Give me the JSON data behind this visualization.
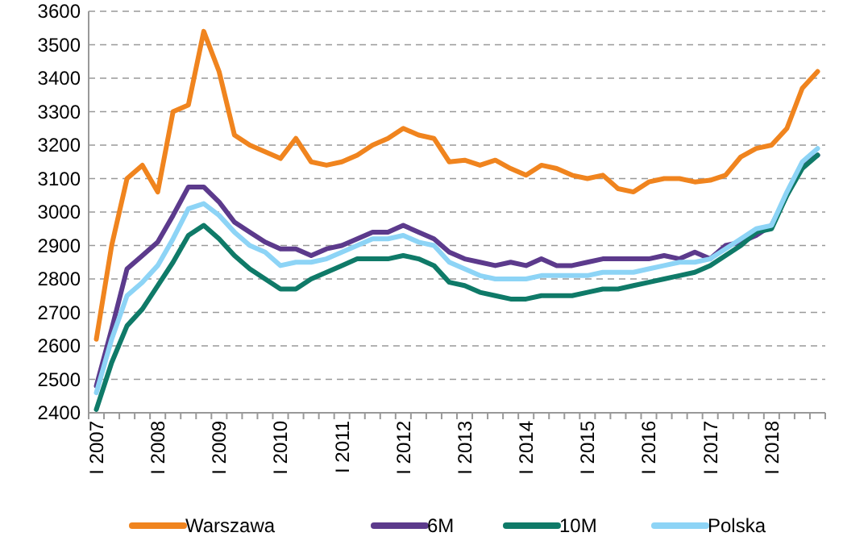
{
  "chart_data": {
    "type": "line",
    "categories": [
      "I 2007",
      null,
      null,
      null,
      "I 2008",
      null,
      null,
      null,
      "I 2009",
      null,
      null,
      null,
      "I 2010",
      null,
      null,
      null,
      "I 2011",
      null,
      null,
      null,
      "I 2012",
      null,
      null,
      null,
      "I 2013",
      null,
      null,
      null,
      "I 2014",
      null,
      null,
      null,
      "I 2015",
      null,
      null,
      null,
      "I 2016",
      null,
      null,
      null,
      "I 2017",
      null,
      null,
      null,
      "I 2018",
      null,
      null,
      null
    ],
    "ylim": [
      2400,
      3600
    ],
    "yticks": [
      2400,
      2500,
      2600,
      2700,
      2800,
      2900,
      3000,
      3100,
      3200,
      3300,
      3400,
      3500,
      3600
    ],
    "grid": "y",
    "legend": "bottom",
    "line_style": "solid",
    "marker": "none",
    "series": [
      {
        "name": "Warszawa",
        "color": "#f0841e",
        "values": [
          2620,
          2900,
          3100,
          3140,
          3060,
          3300,
          3320,
          3540,
          3420,
          3230,
          3200,
          3180,
          3160,
          3220,
          3150,
          3140,
          3150,
          3170,
          3200,
          3220,
          3250,
          3230,
          3220,
          3150,
          3155,
          3140,
          3155,
          3130,
          3110,
          3140,
          3130,
          3110,
          3100,
          3110,
          3070,
          3060,
          3090,
          3100,
          3100,
          3090,
          3095,
          3110,
          3165,
          3190,
          3200,
          3250,
          3370,
          3420
        ]
      },
      {
        "name": "6M",
        "color": "#5c3a8c",
        "values": [
          2480,
          2650,
          2830,
          2870,
          2910,
          2990,
          3075,
          3075,
          3030,
          2970,
          2940,
          2910,
          2890,
          2890,
          2870,
          2890,
          2900,
          2920,
          2940,
          2940,
          2960,
          2940,
          2920,
          2880,
          2860,
          2850,
          2840,
          2850,
          2840,
          2860,
          2840,
          2840,
          2850,
          2860,
          2860,
          2860,
          2860,
          2870,
          2860,
          2880,
          2860,
          2900,
          2910,
          2930,
          2960,
          3050,
          3140,
          3170
        ]
      },
      {
        "name": "10M",
        "color": "#0f7a68",
        "values": [
          2410,
          2550,
          2660,
          2710,
          2780,
          2850,
          2930,
          2960,
          2920,
          2870,
          2830,
          2800,
          2770,
          2770,
          2800,
          2820,
          2840,
          2860,
          2860,
          2860,
          2870,
          2860,
          2840,
          2790,
          2780,
          2760,
          2750,
          2740,
          2740,
          2750,
          2750,
          2750,
          2760,
          2770,
          2770,
          2780,
          2790,
          2800,
          2810,
          2820,
          2840,
          2870,
          2900,
          2940,
          2950,
          3050,
          3130,
          3170
        ]
      },
      {
        "name": "Polska",
        "color": "#8dd4f6",
        "values": [
          2460,
          2620,
          2750,
          2790,
          2840,
          2920,
          3010,
          3025,
          2990,
          2940,
          2900,
          2880,
          2840,
          2850,
          2850,
          2860,
          2880,
          2900,
          2920,
          2920,
          2930,
          2910,
          2900,
          2850,
          2830,
          2810,
          2800,
          2800,
          2800,
          2810,
          2810,
          2810,
          2810,
          2820,
          2820,
          2820,
          2830,
          2840,
          2850,
          2850,
          2860,
          2890,
          2920,
          2950,
          2960,
          3060,
          3150,
          3190
        ]
      }
    ]
  }
}
